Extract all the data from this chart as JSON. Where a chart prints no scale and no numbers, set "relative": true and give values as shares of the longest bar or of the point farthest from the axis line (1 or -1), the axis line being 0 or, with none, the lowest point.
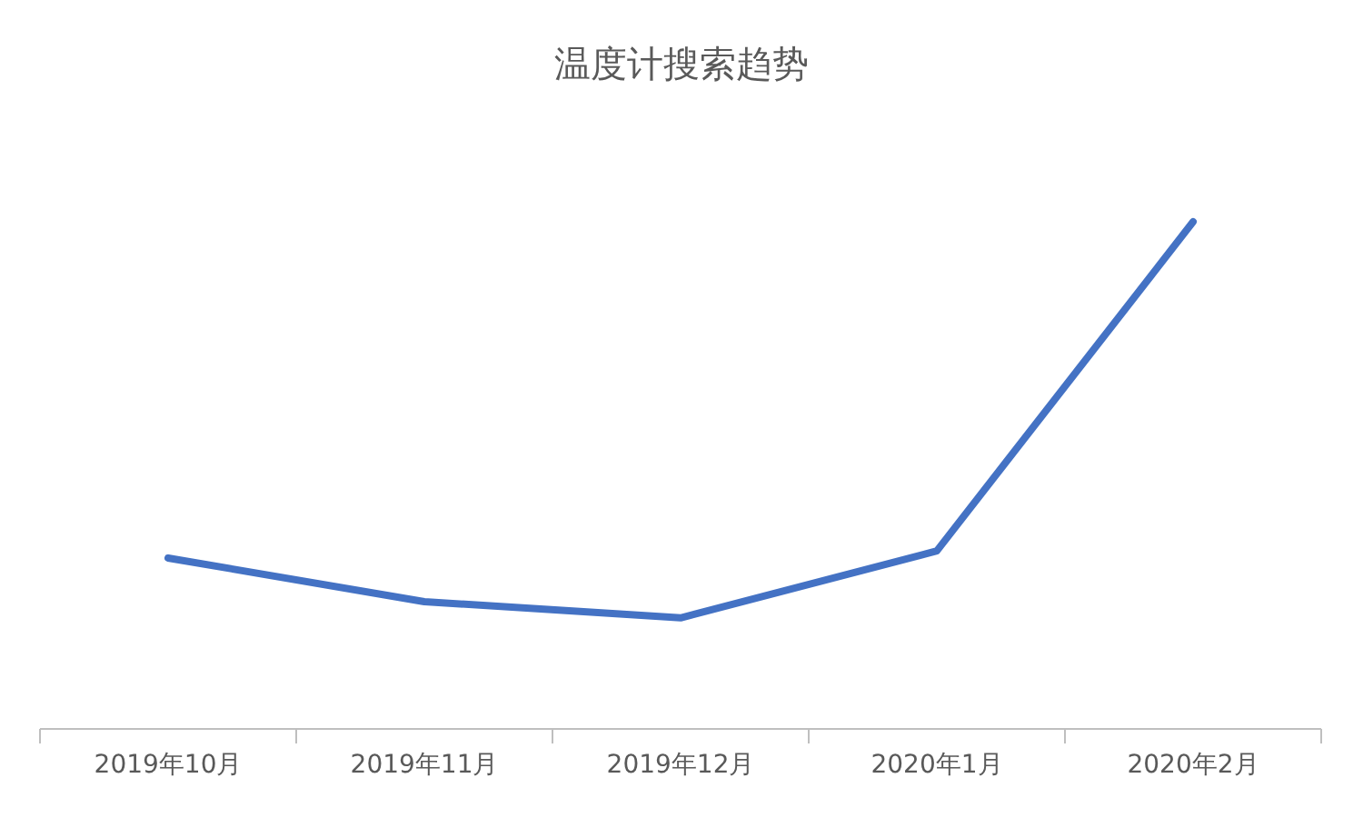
{
  "chart_data": {
    "type": "line",
    "title": "温度计搜索趋势",
    "relative": true,
    "categories": [
      "2019年10月",
      "2019年11月",
      "2019年12月",
      "2020年1月",
      "2020年2月"
    ],
    "series": [
      {
        "color": "#4472c4",
        "values": [
          0.337,
          0.251,
          0.219,
          0.351,
          1
        ]
      }
    ],
    "grid": false,
    "marker": "none",
    "line_style": "solid"
  }
}
